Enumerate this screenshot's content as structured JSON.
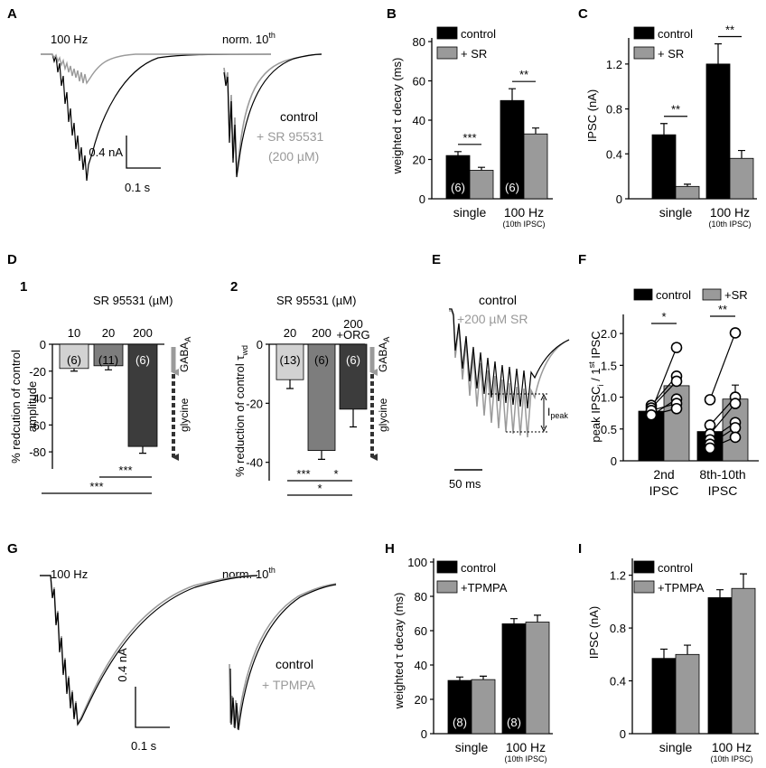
{
  "colors": {
    "control": "#000000",
    "drug": "#9a9a9a",
    "dark": "#3c3c3c",
    "mid": "#7d7d7d",
    "light": "#d2d2d2"
  },
  "panels": {
    "A": {
      "letter": "A",
      "title1": "100 Hz",
      "title2_main": "norm. 10",
      "title2_sup": "th",
      "scale_v": "0.4 nA",
      "scale_t": "0.1 s",
      "legend": [
        "control",
        "+ SR 95531",
        "(200 µM)"
      ]
    },
    "D": {
      "letter": "D",
      "sub1": {
        "num": "1",
        "title": "SR 95531 (µM)",
        "ylabel": "% redcution of control",
        "ylabel2": "amplitude",
        "conc": [
          "10",
          "20",
          "200"
        ],
        "gaba": "GABA",
        "gaba_sub": "A",
        "glycine": "glycine",
        "sig_top": "***",
        "sig_bottom": "***"
      },
      "sub2": {
        "num": "2",
        "title": "SR 95531 (µM)",
        "ylabel": "% reduction of control τ",
        "ylabel_sub": "wd",
        "conc": [
          "20",
          "200",
          "200",
          "+ORG"
        ],
        "gaba": "GABA",
        "gaba_sub": "A",
        "glycine": "glycine",
        "sig_a": "***",
        "sig_b": "*",
        "sig_c": "*"
      }
    },
    "E": {
      "letter": "E",
      "legend": [
        "control",
        "+200 µM SR"
      ],
      "ipeak": "I",
      "ipeak_sub": "peak",
      "scale_t": "50 ms"
    },
    "G": {
      "letter": "G",
      "title1": "100 Hz",
      "title2_main": "norm. 10",
      "title2_sup": "th",
      "scale_v": "0.4 nA",
      "scale_t": "0.1 s",
      "legend": [
        "control",
        "+ TPMPA"
      ]
    }
  },
  "chart_data": [
    {
      "id": "B",
      "letter": "B",
      "type": "bar",
      "ylabel": "weighted τ decay (ms)",
      "ylim": [
        0,
        80
      ],
      "yticks": [
        "0",
        "20",
        "40",
        "60",
        "80"
      ],
      "categories": [
        "single",
        "100 Hz"
      ],
      "cat_sub": [
        "",
        "(10th IPSC)"
      ],
      "legend": [
        "control",
        "+ SR"
      ],
      "series": [
        {
          "name": "control",
          "values": [
            22,
            50
          ],
          "err": [
            2,
            6
          ]
        },
        {
          "name": "+ SR",
          "values": [
            14.5,
            33
          ],
          "err": [
            1.5,
            3
          ]
        }
      ],
      "n": [
        "(6)",
        "(6)"
      ],
      "sig": [
        "***",
        "**"
      ]
    },
    {
      "id": "C",
      "letter": "C",
      "type": "bar",
      "ylabel": "IPSC (nA)",
      "ylim": [
        0,
        1.4
      ],
      "yticks": [
        "0",
        "0.4",
        "0.8",
        "1.2"
      ],
      "categories": [
        "single",
        "100 Hz"
      ],
      "cat_sub": [
        "",
        "(10th IPSC)"
      ],
      "legend": [
        "control",
        "+ SR"
      ],
      "series": [
        {
          "name": "control",
          "values": [
            0.57,
            1.2
          ],
          "err": [
            0.1,
            0.18
          ]
        },
        {
          "name": "+ SR",
          "values": [
            0.11,
            0.36
          ],
          "err": [
            0.02,
            0.07
          ]
        }
      ],
      "sig": [
        "**",
        "**"
      ]
    },
    {
      "id": "D1",
      "type": "bar",
      "ylim": [
        -90,
        0
      ],
      "yticks": [
        "0",
        "-20",
        "-40",
        "-60",
        "-80"
      ],
      "categories": [
        "10",
        "20",
        "200"
      ],
      "values": [
        -18,
        -16,
        -76
      ],
      "err": [
        2,
        3,
        5
      ],
      "n": [
        "(6)",
        "(11)",
        "(6)"
      ]
    },
    {
      "id": "D2",
      "type": "bar",
      "ylim": [
        -45,
        0
      ],
      "yticks": [
        "0",
        "-20",
        "-40"
      ],
      "categories": [
        "20",
        "200",
        "200 +ORG"
      ],
      "values": [
        -12,
        -36,
        -22
      ],
      "err": [
        3,
        3,
        6
      ],
      "n": [
        "(13)",
        "(6)",
        "(6)"
      ]
    },
    {
      "id": "F",
      "letter": "F",
      "type": "bar",
      "ylabel": "peak IPSC",
      "ylabel_sub": "i",
      "ylabel_rest": " / 1",
      "ylabel_sup": "st",
      "ylabel_end": " IPSC",
      "ylim": [
        0,
        2.3
      ],
      "yticks": [
        "0",
        "0.5",
        "1.0",
        "1.5",
        "2.0"
      ],
      "categories": [
        "2nd IPSC",
        "8th-10th IPSC"
      ],
      "legend": [
        "control",
        "+SR"
      ],
      "series": [
        {
          "name": "control",
          "values": [
            0.78,
            0.46
          ],
          "err": [
            0.05,
            0.1
          ]
        },
        {
          "name": "+SR",
          "values": [
            1.18,
            0.97
          ],
          "err": [
            0.17,
            0.22
          ]
        }
      ],
      "paired": [
        [
          [
            0.78,
            1.78
          ],
          [
            0.87,
            1.33
          ],
          [
            0.83,
            1.25
          ],
          [
            0.71,
            0.97
          ],
          [
            0.79,
            0.9
          ],
          [
            0.72,
            0.82
          ]
        ],
        [
          [
            0.96,
            2.01
          ],
          [
            0.56,
            1.0
          ],
          [
            0.42,
            0.9
          ],
          [
            0.33,
            0.6
          ],
          [
            0.26,
            0.52
          ],
          [
            0.2,
            0.37
          ]
        ]
      ],
      "sig": [
        "*",
        "**"
      ]
    },
    {
      "id": "H",
      "letter": "H",
      "type": "bar",
      "ylabel": "weighted τ decay (ms)",
      "ylim": [
        0,
        100
      ],
      "yticks": [
        "0",
        "20",
        "40",
        "60",
        "80",
        "100"
      ],
      "categories": [
        "single",
        "100 Hz"
      ],
      "cat_sub": [
        "",
        "(10th IPSC)"
      ],
      "legend": [
        "control",
        "+TPMPA"
      ],
      "series": [
        {
          "name": "control",
          "values": [
            31,
            64
          ],
          "err": [
            2,
            3
          ]
        },
        {
          "name": "+TPMPA",
          "values": [
            31.5,
            65
          ],
          "err": [
            2,
            4
          ]
        }
      ],
      "n": [
        "(8)",
        "(8)"
      ]
    },
    {
      "id": "I",
      "letter": "I",
      "type": "bar",
      "ylabel": "IPSC (nA)",
      "ylim": [
        0,
        1.3
      ],
      "yticks": [
        "0",
        "0.4",
        "0.8",
        "1.2"
      ],
      "categories": [
        "single",
        "100 Hz"
      ],
      "cat_sub": [
        "",
        "(10th IPSC)"
      ],
      "legend": [
        "control",
        "+TPMPA"
      ],
      "series": [
        {
          "name": "control",
          "values": [
            0.57,
            1.03
          ],
          "err": [
            0.07,
            0.06
          ]
        },
        {
          "name": "+TPMPA",
          "values": [
            0.6,
            1.1
          ],
          "err": [
            0.07,
            0.11
          ]
        }
      ]
    }
  ]
}
